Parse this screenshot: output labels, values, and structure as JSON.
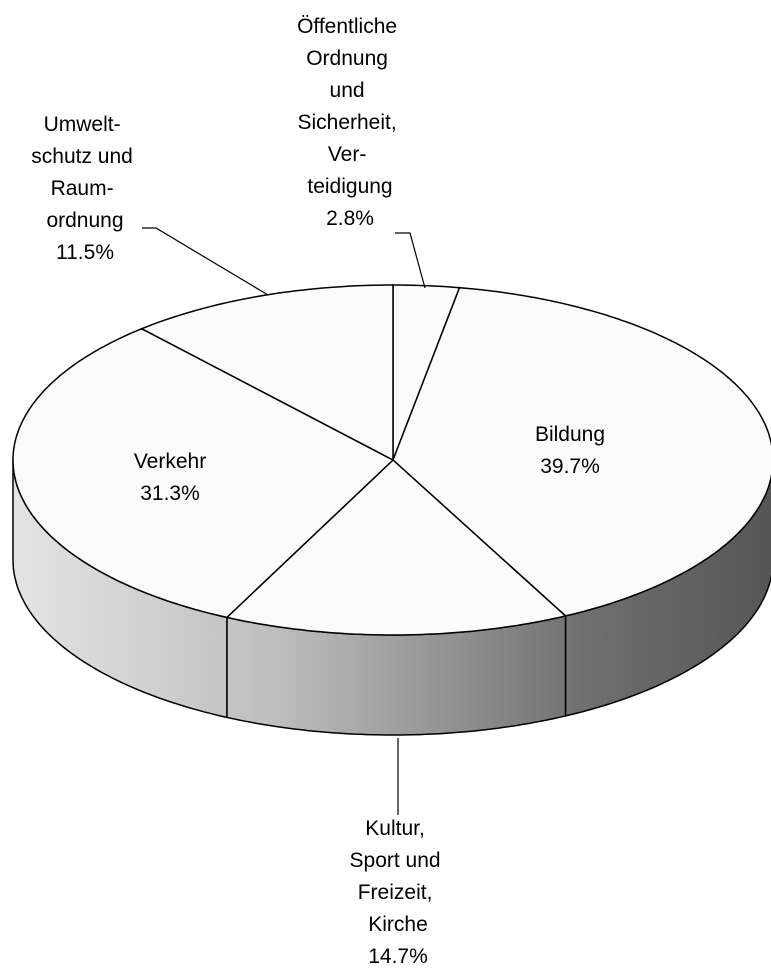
{
  "chart_data": {
    "type": "pie3d",
    "categories": [
      "Öffentliche\nOrdnung\nund\nSicherheit,\nVer-\nteidigung",
      "Bildung",
      "Kultur,\nSport und\nFreizeit,\nKirche",
      "Verkehr",
      "Umwelt-\nschutz und\nRaum-\nordnung"
    ],
    "values": [
      2.8,
      39.7,
      14.7,
      31.3,
      11.5
    ],
    "value_labels": [
      "2.8%",
      "39.7%",
      "14.7%",
      "31.3%",
      "11.5%"
    ]
  }
}
